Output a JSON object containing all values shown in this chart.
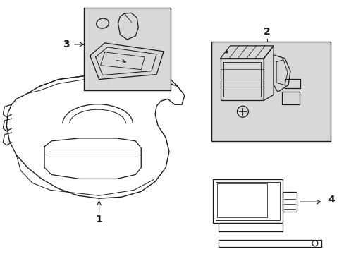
{
  "bg_color": "#ffffff",
  "line_color": "#1a1a1a",
  "box_fill": "#d8d8d8",
  "label_fontsize": 9,
  "fig_width": 4.89,
  "fig_height": 3.6,
  "dpi": 100
}
